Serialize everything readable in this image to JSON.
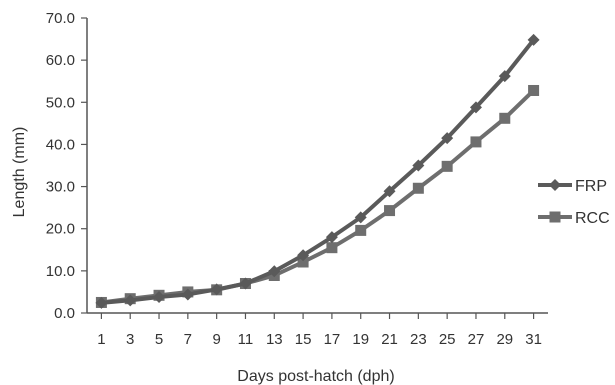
{
  "chart_data": {
    "type": "line",
    "xlabel": "Days post-hatch (dph)",
    "ylabel": "Length (mm)",
    "ylim": [
      0,
      70
    ],
    "yticks": [
      "0.0",
      "10.0",
      "20.0",
      "30.0",
      "40.0",
      "50.0",
      "60.0",
      "70.0"
    ],
    "x": [
      1,
      3,
      5,
      7,
      9,
      11,
      13,
      15,
      17,
      19,
      21,
      23,
      25,
      27,
      29,
      31
    ],
    "xtick_labels": [
      "1",
      "3",
      "5",
      "7",
      "9",
      "11",
      "13",
      "15",
      "17",
      "19",
      "21",
      "23",
      "25",
      "27",
      "29",
      "31"
    ],
    "grid": false,
    "legend_position": "right",
    "series": [
      {
        "name": "FRP",
        "marker": "diamond",
        "color": "#5a5a5a",
        "values": [
          2.4,
          3.0,
          3.8,
          4.4,
          5.6,
          7.0,
          9.9,
          13.7,
          18.0,
          22.7,
          28.9,
          35.0,
          41.5,
          48.8,
          56.2,
          64.8
        ]
      },
      {
        "name": "RCC",
        "marker": "square",
        "color": "#6e6e6e",
        "values": [
          2.5,
          3.4,
          4.2,
          5.0,
          5.5,
          7.0,
          8.9,
          12.1,
          15.5,
          19.6,
          24.3,
          29.6,
          34.8,
          40.6,
          46.2,
          52.8
        ]
      }
    ]
  }
}
